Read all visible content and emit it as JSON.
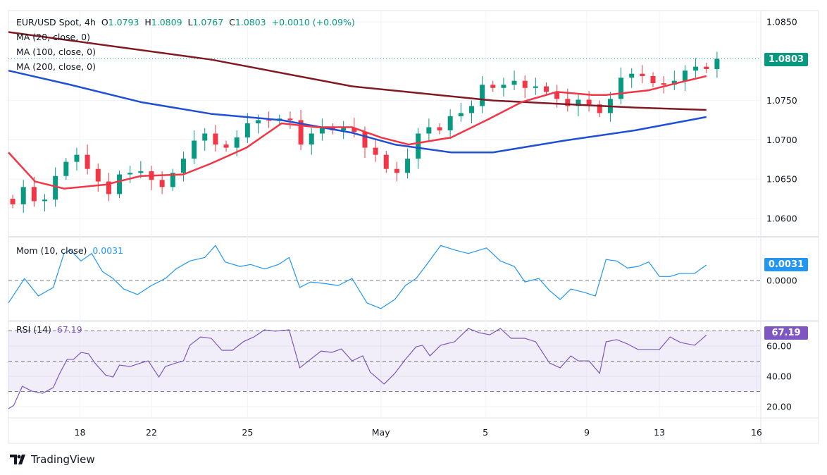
{
  "header": {
    "symbol": "EUR/USD Spot, 4h",
    "o_label": "O",
    "o": "1.0793",
    "h_label": "H",
    "h": "1.0809",
    "l_label": "L",
    "l": "1.0767",
    "c_label": "C",
    "c": "1.0803",
    "change": "+0.0010 (+0.09%)"
  },
  "legends": {
    "ma20": "MA (20, close, 0)",
    "ma100": "MA (100, close, 0)",
    "ma200": "MA (200, close, 0)",
    "mom": "Mom (10, close)",
    "mom_value": "0.0031",
    "rsi": "RSI (14)",
    "rsi_value": "67.19"
  },
  "tags": {
    "price": "1.0803",
    "mom": "0.0031",
    "rsi": "67.19"
  },
  "branding": {
    "logo_text": "TradingView"
  },
  "colors": {
    "up": "#089981",
    "down": "#f23645",
    "ma20": "#f23645",
    "ma100": "#1e4fd6",
    "ma200": "#801922",
    "mom": "#2196f3",
    "rsi": "#7e57c2"
  },
  "chart_data": [
    {
      "type": "candlestick",
      "title": "EUR/USD Spot, 4h",
      "yticks": [
        "1.0850",
        "1.0750",
        "1.0700",
        "1.0650",
        "1.0600"
      ],
      "ylim": [
        1.058,
        1.0865
      ],
      "xticks": [
        {
          "t": 6.3,
          "label": "18"
        },
        {
          "t": 13,
          "label": "22"
        },
        {
          "t": 22,
          "label": "25"
        },
        {
          "t": 34.5,
          "label": "May"
        },
        {
          "t": 44.3,
          "label": "5"
        },
        {
          "t": 53.8,
          "label": "9"
        },
        {
          "t": 60.6,
          "label": "13"
        },
        {
          "t": 69.7,
          "label": "16"
        }
      ],
      "xlim": [
        -0.4,
        70.1
      ],
      "first_open": 1.0625,
      "closes": [
        1.0618,
        1.064,
        1.0622,
        1.0624,
        1.0654,
        1.0672,
        1.0681,
        1.0663,
        1.0647,
        1.0631,
        1.0656,
        1.0658,
        1.066,
        1.0649,
        1.064,
        1.0658,
        1.0676,
        1.0699,
        1.0708,
        1.0694,
        1.069,
        1.0703,
        1.0721,
        1.0725,
        1.0724,
        1.0727,
        1.0725,
        1.0694,
        1.0708,
        1.0716,
        1.0712,
        1.0715,
        1.071,
        1.069,
        1.0681,
        1.0663,
        1.0658,
        1.0676,
        1.0708,
        1.0716,
        1.0712,
        1.073,
        1.0734,
        1.0743,
        1.077,
        1.0766,
        1.077,
        1.0775,
        1.0766,
        1.0768,
        1.0761,
        1.0752,
        1.0743,
        1.0751,
        1.0745,
        1.0734,
        1.0752,
        1.0779,
        1.0784,
        1.0781,
        1.0772,
        1.077,
        1.0775,
        1.0788,
        1.0793,
        1.079,
        1.0803
      ],
      "last_price": 1.0803,
      "series": [
        {
          "name": "MA (20, close, 0)",
          "points": [
            [
              -0.4,
              1.0684
            ],
            [
              2.1,
              1.0647
            ],
            [
              4.8,
              1.0638
            ],
            [
              8.7,
              1.0643
            ],
            [
              12,
              1.0654
            ],
            [
              16,
              1.0656
            ],
            [
              18.6,
              1.067
            ],
            [
              21.9,
              1.069
            ],
            [
              25.2,
              1.0721
            ],
            [
              28.5,
              1.0716
            ],
            [
              31.8,
              1.0716
            ],
            [
              34.5,
              1.0703
            ],
            [
              37.1,
              1.0694
            ],
            [
              41.1,
              1.0703
            ],
            [
              44.4,
              1.0725
            ],
            [
              47.7,
              1.0748
            ],
            [
              51,
              1.0761
            ],
            [
              54.3,
              1.0757
            ],
            [
              55.6,
              1.0757
            ],
            [
              59.6,
              1.0763
            ],
            [
              62.2,
              1.0772
            ],
            [
              65,
              1.0781
            ]
          ]
        },
        {
          "name": "MA (100, close, 0)",
          "points": [
            [
              -0.4,
              1.0788
            ],
            [
              5.4,
              1.077
            ],
            [
              12,
              1.0748
            ],
            [
              18.6,
              1.0733
            ],
            [
              25.2,
              1.0725
            ],
            [
              31.8,
              1.0709
            ],
            [
              35.8,
              1.0694
            ],
            [
              41.1,
              1.0684
            ],
            [
              45,
              1.0684
            ],
            [
              51.7,
              1.0699
            ],
            [
              58.3,
              1.0712
            ],
            [
              65,
              1.0729
            ]
          ]
        },
        {
          "name": "MA (200, close, 0)",
          "points": [
            [
              -0.4,
              1.0837
            ],
            [
              18.6,
              1.0802
            ],
            [
              31.8,
              1.0768
            ],
            [
              45,
              1.075
            ],
            [
              58.3,
              1.0741
            ],
            [
              65,
              1.0738
            ]
          ]
        }
      ]
    },
    {
      "type": "line",
      "title": "Mom (10, close)",
      "yticks": [
        "0.0000"
      ],
      "ylim": [
        -0.008,
        0.0075
      ],
      "points": [
        [
          -0.4,
          -0.0045
        ],
        [
          1.1,
          0.0004
        ],
        [
          2.4,
          -0.0031
        ],
        [
          3.8,
          -0.0014
        ],
        [
          4.8,
          0.0054
        ],
        [
          5.4,
          0.0061
        ],
        [
          6.4,
          0.0039
        ],
        [
          7.4,
          0.0054
        ],
        [
          8.4,
          0.0018
        ],
        [
          9.4,
          0.0004
        ],
        [
          10.4,
          -0.0017
        ],
        [
          11.7,
          -0.0028
        ],
        [
          13,
          -0.001
        ],
        [
          14.3,
          0.0004
        ],
        [
          15.3,
          0.0023
        ],
        [
          16.6,
          0.0039
        ],
        [
          18,
          0.0046
        ],
        [
          19,
          0.007
        ],
        [
          19.9,
          0.0037
        ],
        [
          21.3,
          0.0028
        ],
        [
          22.3,
          0.0032
        ],
        [
          23.6,
          0.0023
        ],
        [
          24.9,
          0.0032
        ],
        [
          25.9,
          0.0046
        ],
        [
          26.9,
          -0.0014
        ],
        [
          27.9,
          -0.0003
        ],
        [
          29.2,
          -0.0006
        ],
        [
          30.5,
          -0.001
        ],
        [
          31.8,
          0.0004
        ],
        [
          33.2,
          -0.0045
        ],
        [
          34.5,
          -0.0056
        ],
        [
          35.8,
          -0.0038
        ],
        [
          36.8,
          -0.001
        ],
        [
          37.8,
          0.0004
        ],
        [
          38.8,
          0.0032
        ],
        [
          40.1,
          0.007
        ],
        [
          41.4,
          0.0061
        ],
        [
          42.7,
          0.0054
        ],
        [
          44.4,
          0.0065
        ],
        [
          45.7,
          0.0039
        ],
        [
          47,
          0.0028
        ],
        [
          48,
          -0.0003
        ],
        [
          49.3,
          0.0004
        ],
        [
          50.3,
          -0.002
        ],
        [
          51.3,
          -0.0038
        ],
        [
          52.3,
          -0.0017
        ],
        [
          53.6,
          -0.0024
        ],
        [
          54.6,
          -0.0031
        ],
        [
          55.6,
          0.0042
        ],
        [
          56.6,
          0.0039
        ],
        [
          57.6,
          0.0025
        ],
        [
          58.6,
          0.0028
        ],
        [
          59.6,
          0.0037
        ],
        [
          60.6,
          0.0008
        ],
        [
          61.6,
          0.0008
        ],
        [
          62.5,
          0.0014
        ],
        [
          63.9,
          0.0014
        ],
        [
          65,
          0.0031
        ]
      ]
    },
    {
      "type": "line",
      "title": "RSI (14)",
      "yticks": [
        "60.00",
        "40.00",
        "20.00"
      ],
      "bands": [
        70,
        50,
        30
      ],
      "ylim": [
        12,
        82
      ],
      "points": [
        [
          -0.4,
          18.6
        ],
        [
          0.1,
          20.9
        ],
        [
          0.9,
          33.5
        ],
        [
          1.8,
          30.2
        ],
        [
          2.8,
          28.8
        ],
        [
          3.8,
          32.6
        ],
        [
          4.4,
          41.9
        ],
        [
          5.1,
          51.2
        ],
        [
          5.7,
          51.2
        ],
        [
          6.4,
          55.8
        ],
        [
          7.1,
          54.9
        ],
        [
          7.7,
          48.8
        ],
        [
          8.7,
          40.9
        ],
        [
          9.4,
          39.5
        ],
        [
          10,
          47.4
        ],
        [
          11,
          46.5
        ],
        [
          12,
          48.8
        ],
        [
          12.7,
          50.2
        ],
        [
          13.7,
          39.5
        ],
        [
          14.3,
          46.5
        ],
        [
          15.3,
          48.8
        ],
        [
          16,
          50.2
        ],
        [
          16.6,
          60.5
        ],
        [
          17.6,
          66
        ],
        [
          18.6,
          65.1
        ],
        [
          19.6,
          57.2
        ],
        [
          20.6,
          57.2
        ],
        [
          21.6,
          62.8
        ],
        [
          22.6,
          66
        ],
        [
          23.6,
          70.7
        ],
        [
          24.6,
          69.8
        ],
        [
          25.9,
          70.7
        ],
        [
          26.9,
          45.6
        ],
        [
          27.9,
          51.2
        ],
        [
          28.9,
          56.7
        ],
        [
          29.9,
          55.8
        ],
        [
          30.8,
          58.1
        ],
        [
          31.8,
          50.2
        ],
        [
          32.8,
          53.5
        ],
        [
          33.5,
          42.8
        ],
        [
          34.8,
          34.9
        ],
        [
          35.8,
          41.9
        ],
        [
          36.8,
          51.2
        ],
        [
          37.8,
          59.5
        ],
        [
          38.4,
          60.5
        ],
        [
          39.1,
          53.5
        ],
        [
          40.1,
          60.5
        ],
        [
          41.4,
          62.8
        ],
        [
          42.7,
          71.6
        ],
        [
          43.7,
          68.8
        ],
        [
          44.7,
          67.4
        ],
        [
          45.7,
          71.6
        ],
        [
          46.7,
          65.1
        ],
        [
          48,
          65.1
        ],
        [
          49,
          62.8
        ],
        [
          50.3,
          48.8
        ],
        [
          51.3,
          45.6
        ],
        [
          52.3,
          53.5
        ],
        [
          53,
          50.2
        ],
        [
          54,
          50.2
        ],
        [
          55,
          41.9
        ],
        [
          55.6,
          62.8
        ],
        [
          56.6,
          64.2
        ],
        [
          57.6,
          61.4
        ],
        [
          58.6,
          57.7
        ],
        [
          60.6,
          57.7
        ],
        [
          61.6,
          66
        ],
        [
          62.6,
          62.3
        ],
        [
          63.9,
          60.5
        ],
        [
          65,
          67.19
        ]
      ]
    }
  ]
}
